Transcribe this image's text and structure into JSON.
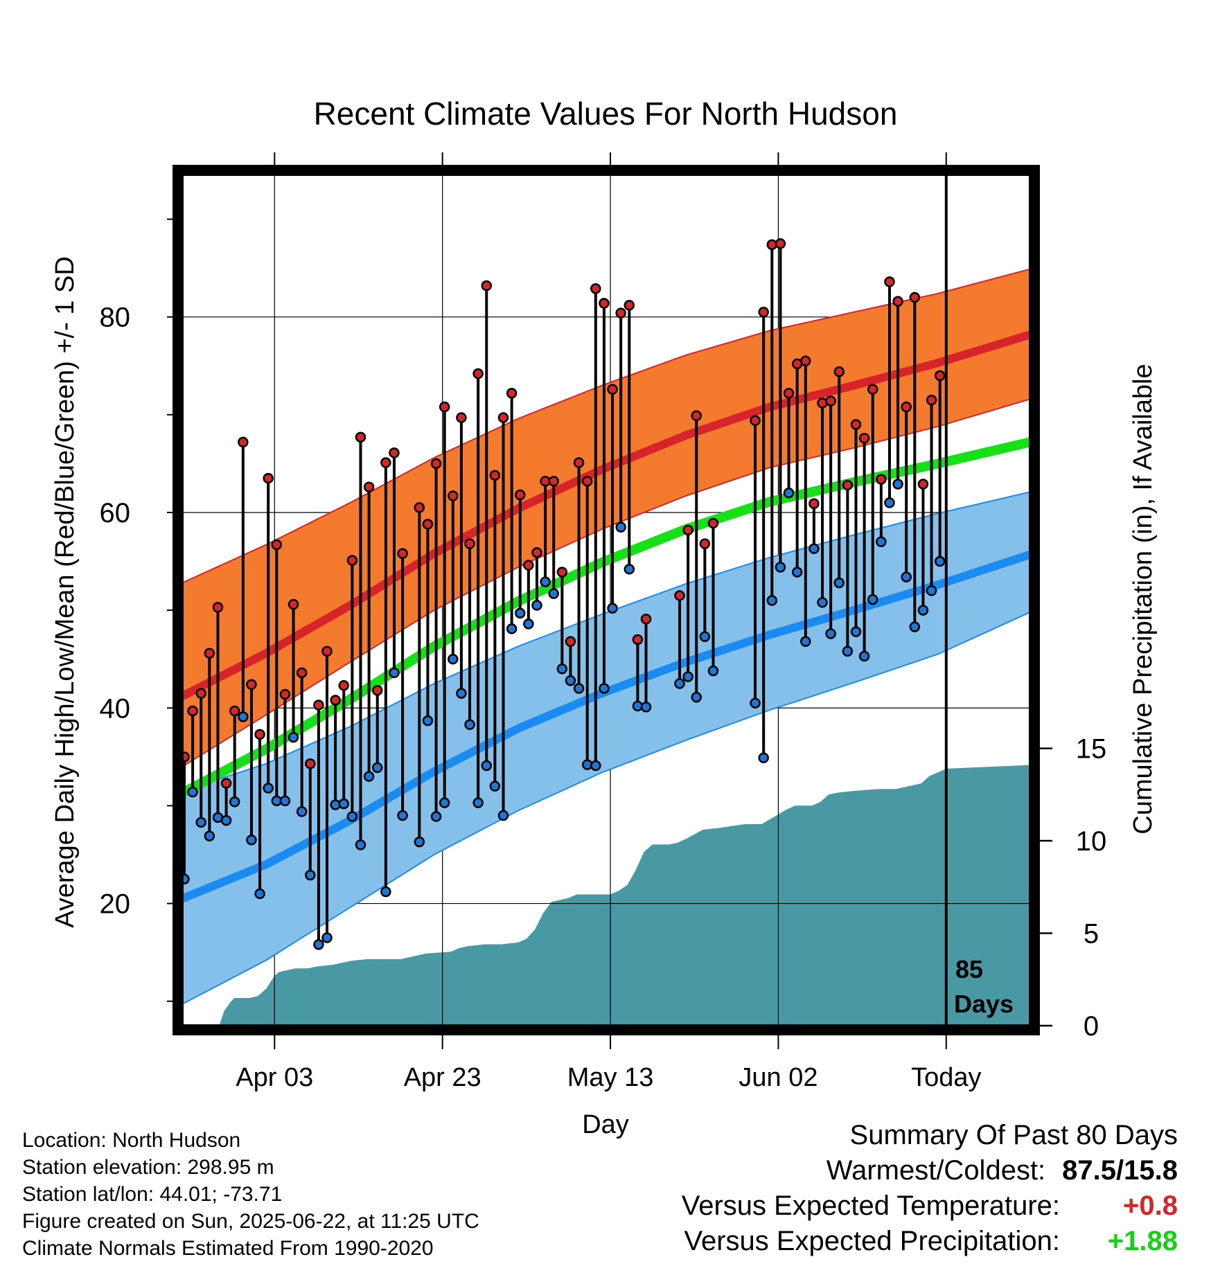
{
  "chart_data": {
    "type": "line",
    "title": "Recent Climate Values For North Hudson",
    "xlabel": "Day",
    "ylabel": "Average Daily High/Low/Mean (Red/Blue/Green) +/- 1 SD",
    "y2label": "Cumulative Precipitation (in), If Available",
    "x_start_date": "2025-03-23",
    "x_range_days": [
      0,
      101
    ],
    "ylim": [
      7.5,
      94.5
    ],
    "y2lim": [
      0,
      46
    ],
    "xtick_days": [
      11,
      31,
      51,
      71,
      91
    ],
    "xticks": [
      "Apr 03",
      "Apr 23",
      "May 13",
      "Jun 02",
      "Today"
    ],
    "yticks": [
      20,
      40,
      60,
      80
    ],
    "y2ticks": [
      0,
      5,
      10,
      15
    ],
    "grid": true,
    "today_day": 91,
    "today_label_line1": "85",
    "today_label_line2": "Days",
    "colors": {
      "high_band": "#f47b2d",
      "high_mean": "#d6242a",
      "low_band": "#85c0ea",
      "low_mean": "#1a8bf0",
      "mean": "#16e016",
      "precip": "#4899a3",
      "high_dot": "#d62728",
      "low_dot": "#1f77d4"
    },
    "normals": {
      "x_days": [
        0,
        10,
        20,
        30,
        40,
        50,
        60,
        70,
        80,
        90,
        101
      ],
      "high_upper": [
        52.8,
        56.7,
        61.0,
        65.6,
        69.6,
        73.0,
        76.1,
        78.6,
        80.5,
        82.4,
        84.9
      ],
      "high_mean": [
        41.2,
        45.6,
        50.5,
        55.8,
        60.4,
        64.4,
        67.9,
        70.8,
        73.0,
        75.3,
        78.2
      ],
      "high_lower": [
        34.0,
        39.3,
        44.7,
        50.0,
        54.4,
        58.3,
        61.7,
        64.6,
        66.6,
        68.8,
        71.6
      ],
      "mean": [
        31.3,
        35.8,
        40.9,
        46.3,
        50.9,
        54.9,
        58.3,
        61.1,
        63.1,
        65.0,
        67.2
      ],
      "low_upper": [
        31.5,
        34.3,
        38.1,
        42.5,
        46.3,
        49.6,
        52.7,
        55.4,
        57.7,
        59.9,
        62.1
      ],
      "low_mean": [
        20.5,
        24.0,
        28.5,
        33.5,
        37.9,
        41.5,
        44.7,
        47.5,
        50.0,
        52.6,
        55.7
      ],
      "low_lower": [
        9.7,
        14.2,
        19.6,
        25.0,
        29.5,
        33.4,
        36.7,
        39.8,
        42.6,
        45.5,
        49.8
      ]
    },
    "daily": {
      "x_days": [
        0,
        1,
        2,
        3,
        4,
        5,
        6,
        7,
        8,
        9,
        10,
        11,
        12,
        13,
        14,
        15,
        16,
        17,
        18,
        19,
        20,
        21,
        22,
        23,
        24,
        25,
        26,
        28,
        29,
        30,
        31,
        32,
        33,
        34,
        35,
        36,
        37,
        38,
        39,
        40,
        41,
        42,
        43,
        44,
        45,
        46,
        47,
        48,
        49,
        50,
        51,
        52,
        53,
        54,
        55,
        59,
        60,
        61,
        62,
        63,
        68,
        69,
        70,
        71,
        72,
        73,
        74,
        75,
        76,
        77,
        78,
        79,
        80,
        81,
        82,
        83,
        84,
        85,
        86,
        87,
        88,
        89,
        90
      ],
      "high": [
        35.0,
        39.7,
        41.5,
        45.6,
        50.3,
        32.3,
        39.7,
        67.2,
        42.4,
        37.3,
        63.5,
        56.7,
        41.4,
        50.6,
        43.6,
        34.3,
        40.3,
        45.8,
        40.8,
        42.3,
        55.1,
        67.7,
        62.6,
        41.8,
        65.1,
        66.1,
        55.8,
        60.5,
        58.8,
        65.0,
        70.8,
        61.7,
        69.7,
        56.8,
        74.2,
        83.2,
        63.8,
        69.7,
        72.2,
        61.8,
        54.6,
        55.9,
        63.2,
        63.2,
        53.9,
        46.8,
        65.1,
        63.2,
        82.9,
        81.4,
        72.6,
        80.4,
        81.2,
        47.0,
        49.1,
        51.5,
        58.2,
        69.9,
        56.8,
        58.9,
        69.4,
        80.5,
        87.4,
        87.5,
        72.2,
        75.2,
        75.5,
        60.9,
        71.2,
        71.4,
        74.4,
        62.8,
        69.0,
        67.6,
        72.6,
        63.4,
        83.6,
        81.6,
        70.8,
        82.0,
        62.9,
        71.5,
        74.0
      ],
      "low": [
        22.5,
        31.4,
        28.3,
        26.9,
        28.8,
        28.5,
        30.4,
        39.1,
        26.5,
        21.0,
        31.8,
        30.5,
        30.5,
        37.0,
        29.4,
        22.9,
        15.8,
        16.5,
        30.1,
        30.2,
        28.9,
        26.0,
        33.0,
        33.9,
        21.2,
        43.6,
        29.0,
        26.3,
        38.7,
        28.9,
        30.3,
        45.0,
        41.5,
        38.3,
        30.3,
        34.1,
        32.0,
        29.0,
        48.1,
        49.7,
        48.6,
        50.5,
        52.9,
        51.7,
        44.0,
        42.8,
        42.0,
        34.2,
        34.1,
        42.0,
        50.2,
        58.5,
        54.2,
        40.2,
        40.1,
        42.5,
        43.2,
        41.1,
        47.3,
        43.8,
        40.5,
        34.9,
        51.0,
        54.4,
        62.0,
        53.9,
        46.8,
        56.3,
        50.8,
        47.6,
        52.8,
        45.8,
        47.8,
        45.3,
        51.1,
        57.0,
        61.0,
        62.9,
        53.4,
        48.3,
        50.0,
        52.0,
        55.0
      ]
    },
    "precip": {
      "x_days": [
        0,
        4.4,
        5.0,
        5.8,
        6.2,
        7.0,
        8.0,
        9.0,
        10.0,
        11.0,
        11.5,
        12.5,
        13.5,
        15.0,
        16.0,
        18.0,
        20.0,
        22.0,
        24.0,
        26.0,
        27.0,
        29.0,
        32.0,
        33.0,
        34.0,
        36.0,
        38.0,
        40.0,
        41.0,
        42.0,
        43.0,
        44.0,
        45.0,
        46.0,
        47.0,
        50.0,
        51.0,
        52.0,
        53.0,
        54.0,
        55.0,
        56.0,
        57.0,
        58.0,
        59.0,
        60.0,
        62.0,
        64.0,
        67.0,
        68.0,
        69.0,
        72.0,
        73.0,
        75.0,
        76.0,
        77.0,
        78.0,
        80.0,
        83.0,
        84.0,
        85.0,
        86.0,
        88.0,
        89.0,
        91.0,
        101.0
      ],
      "cum": [
        0,
        0,
        0.8,
        1.3,
        1.5,
        1.5,
        1.5,
        1.6,
        2.0,
        2.7,
        2.9,
        3.0,
        3.1,
        3.1,
        3.2,
        3.3,
        3.5,
        3.6,
        3.6,
        3.6,
        3.7,
        3.9,
        4.0,
        4.2,
        4.3,
        4.4,
        4.4,
        4.5,
        4.7,
        5.2,
        6.1,
        6.7,
        6.8,
        6.9,
        7.1,
        7.1,
        7.1,
        7.3,
        7.6,
        8.4,
        9.4,
        9.8,
        9.8,
        9.8,
        9.9,
        10.1,
        10.6,
        10.7,
        10.9,
        10.9,
        10.9,
        11.7,
        11.9,
        11.9,
        12.1,
        12.5,
        12.6,
        12.7,
        12.8,
        12.8,
        12.8,
        12.9,
        13.1,
        13.5,
        13.9,
        14.1
      ]
    }
  },
  "footer": {
    "location": "Location: North Hudson",
    "elevation": "Station elevation: 298.95 m",
    "latlon": "Station lat/lon: 44.01; -73.71",
    "created": "Figure created on Sun, 2025-06-22, at 11:25 UTC",
    "normals": "Climate Normals Estimated From 1990-2020"
  },
  "summary": {
    "title": "Summary Of Past 80 Days",
    "warmest_label": "Warmest/Coldest:",
    "warmest_value": "87.5/15.8",
    "temp_label": "Versus Expected Temperature:",
    "temp_value": "+0.8",
    "temp_color": "#d62728",
    "precip_label": "Versus Expected Precipitation:",
    "precip_value": "+1.88",
    "precip_color": "#16d016"
  }
}
